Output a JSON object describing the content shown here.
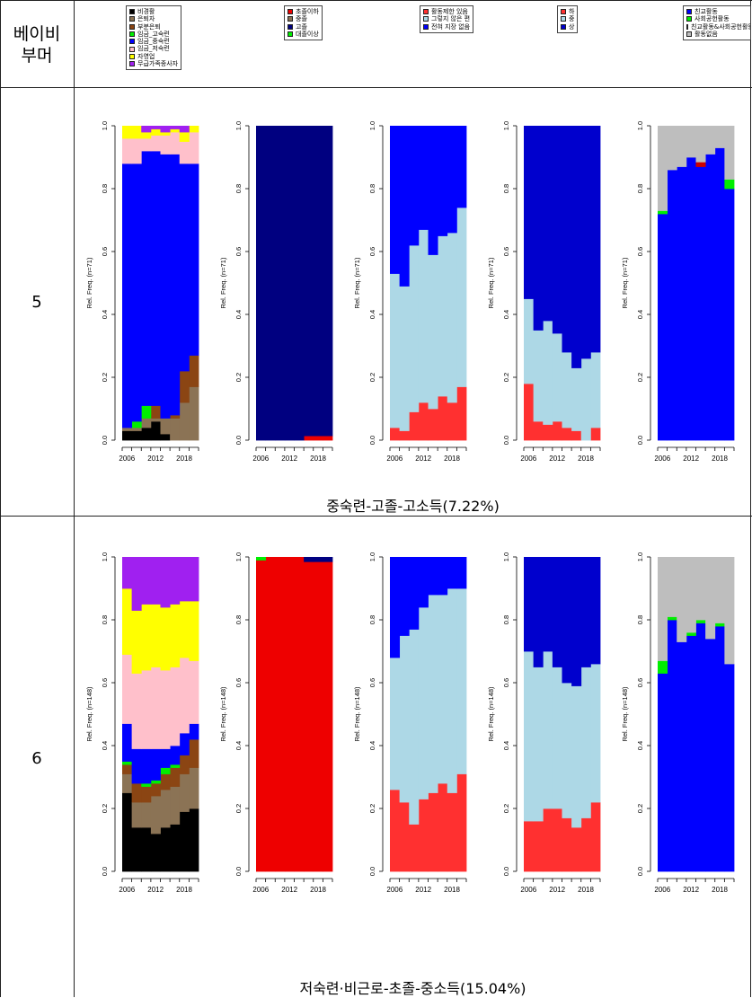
{
  "header": {
    "row_label_line1": "베이비",
    "row_label_line2": "부머",
    "legends": [
      {
        "items": [
          {
            "label": "비경활",
            "color": "#000000"
          },
          {
            "label": "은퇴자",
            "color": "#8b7355"
          },
          {
            "label": "부분은퇴",
            "color": "#8b4513"
          },
          {
            "label": "임금_고숙련",
            "color": "#00ee00"
          },
          {
            "label": "임금_중숙련",
            "color": "#0000ff"
          },
          {
            "label": "임금_저숙련",
            "color": "#ffc0cb"
          },
          {
            "label": "자영업",
            "color": "#ffff00"
          },
          {
            "label": "무급가족종사자",
            "color": "#a020f0"
          }
        ]
      },
      {
        "items": [
          {
            "label": "초졸이하",
            "color": "#ee0000"
          },
          {
            "label": "중졸",
            "color": "#8b7355"
          },
          {
            "label": "고졸",
            "color": "#000080"
          },
          {
            "label": "대졸이상",
            "color": "#00ee00"
          }
        ]
      },
      {
        "items": [
          {
            "label": "활동제한 있음",
            "color": "#ff3030"
          },
          {
            "label": "그렇지 않은 편",
            "color": "#add8e6"
          },
          {
            "label": "전혀 지장 없음",
            "color": "#0000ff"
          }
        ]
      },
      {
        "items": [
          {
            "label": "하",
            "color": "#ff3030"
          },
          {
            "label": "중",
            "color": "#add8e6"
          },
          {
            "label": "상",
            "color": "#0000cd"
          }
        ]
      },
      {
        "items": [
          {
            "label": "친교활동",
            "color": "#0000ff"
          },
          {
            "label": "사회공헌활동",
            "color": "#00ee00"
          },
          {
            "label": "친교활동&사회공헌활동",
            "color": "#cc0000"
          },
          {
            "label": "활동없음",
            "color": "#bebebe"
          }
        ]
      }
    ]
  },
  "rows": [
    {
      "label": "5",
      "caption": "중숙련-고졸-고소득(7.22%)",
      "ylabel": "Rel. Freq. (n=71)"
    },
    {
      "label": "6",
      "caption": "저숙련·비근로-초졸-중소득(15.04%)",
      "ylabel": "Rel. Freq. (n=148)"
    }
  ],
  "axis": {
    "y_ticks": [
      "0.0",
      "0.2",
      "0.4",
      "0.6",
      "0.8",
      "1.0"
    ],
    "x_ticks": [
      "2006",
      "2012",
      "2018"
    ]
  },
  "chart_data": [
    {
      "type": "area",
      "row": "5",
      "panel": "경제활동상태",
      "x": [
        2006,
        2008,
        2010,
        2012,
        2014,
        2016,
        2018,
        2020
      ],
      "ylabel": "Rel. Freq. (n=71)",
      "ylim": [
        0,
        1
      ],
      "series": [
        {
          "name": "비경활",
          "color": "#000000",
          "values": [
            0.03,
            0.03,
            0.04,
            0.06,
            0.02,
            0.0,
            0.0,
            0.0
          ]
        },
        {
          "name": "은퇴자",
          "color": "#8b7355",
          "values": [
            0.01,
            0.01,
            0.03,
            0.01,
            0.05,
            0.07,
            0.12,
            0.17
          ]
        },
        {
          "name": "부분은퇴",
          "color": "#8b4513",
          "values": [
            0.0,
            0.0,
            0.0,
            0.04,
            0.0,
            0.01,
            0.1,
            0.1
          ]
        },
        {
          "name": "임금_고숙련",
          "color": "#00ee00",
          "values": [
            0.0,
            0.02,
            0.04,
            0.0,
            0.0,
            0.0,
            0.0,
            0.0
          ]
        },
        {
          "name": "임금_중숙련",
          "color": "#0000ff",
          "values": [
            0.84,
            0.82,
            0.81,
            0.81,
            0.84,
            0.83,
            0.66,
            0.61
          ]
        },
        {
          "name": "임금_저숙련",
          "color": "#ffc0cb",
          "values": [
            0.08,
            0.08,
            0.04,
            0.05,
            0.06,
            0.07,
            0.07,
            0.1
          ]
        },
        {
          "name": "자영업",
          "color": "#ffff00",
          "values": [
            0.04,
            0.04,
            0.02,
            0.02,
            0.01,
            0.01,
            0.03,
            0.02
          ]
        },
        {
          "name": "무급가족종사자",
          "color": "#a020f0",
          "values": [
            0.0,
            0.0,
            0.02,
            0.01,
            0.02,
            0.01,
            0.02,
            0.0
          ]
        }
      ]
    },
    {
      "type": "area",
      "row": "5",
      "panel": "교육수준",
      "x": [
        2006,
        2008,
        2010,
        2012,
        2014,
        2016,
        2018,
        2020
      ],
      "ylabel": "Rel. Freq. (n=71)",
      "ylim": [
        0,
        1
      ],
      "series": [
        {
          "name": "초졸이하",
          "color": "#ee0000",
          "values": [
            0,
            0,
            0,
            0,
            0,
            0.014,
            0.014,
            0.014
          ]
        },
        {
          "name": "중졸",
          "color": "#8b7355",
          "values": [
            0,
            0,
            0,
            0,
            0,
            0,
            0,
            0
          ]
        },
        {
          "name": "고졸",
          "color": "#000080",
          "values": [
            1,
            1,
            1,
            1,
            1,
            0.986,
            0.986,
            0.986
          ]
        },
        {
          "name": "대졸이상",
          "color": "#00ee00",
          "values": [
            0,
            0,
            0,
            0,
            0,
            0,
            0,
            0
          ]
        }
      ]
    },
    {
      "type": "area",
      "row": "5",
      "panel": "건강",
      "x": [
        2006,
        2008,
        2010,
        2012,
        2014,
        2016,
        2018,
        2020
      ],
      "ylabel": "Rel. Freq. (n=71)",
      "ylim": [
        0,
        1
      ],
      "series": [
        {
          "name": "활동제한 있음",
          "color": "#ff3030",
          "values": [
            0.04,
            0.03,
            0.09,
            0.12,
            0.1,
            0.14,
            0.12,
            0.17
          ]
        },
        {
          "name": "그렇지 않은 편",
          "color": "#add8e6",
          "values": [
            0.49,
            0.46,
            0.53,
            0.55,
            0.49,
            0.51,
            0.54,
            0.57
          ]
        },
        {
          "name": "전혀 지장 없음",
          "color": "#0000ff",
          "values": [
            0.47,
            0.51,
            0.38,
            0.33,
            0.41,
            0.35,
            0.34,
            0.26
          ]
        }
      ]
    },
    {
      "type": "area",
      "row": "5",
      "panel": "소득",
      "x": [
        2006,
        2008,
        2010,
        2012,
        2014,
        2016,
        2018,
        2020
      ],
      "ylabel": "Rel. Freq. (n=71)",
      "ylim": [
        0,
        1
      ],
      "series": [
        {
          "name": "하",
          "color": "#ff3030",
          "values": [
            0.18,
            0.06,
            0.05,
            0.06,
            0.04,
            0.03,
            0.0,
            0.04
          ]
        },
        {
          "name": "중",
          "color": "#add8e6",
          "values": [
            0.27,
            0.29,
            0.33,
            0.28,
            0.24,
            0.2,
            0.26,
            0.24
          ]
        },
        {
          "name": "상",
          "color": "#0000cd",
          "values": [
            0.55,
            0.65,
            0.62,
            0.66,
            0.72,
            0.77,
            0.74,
            0.72
          ]
        }
      ]
    },
    {
      "type": "area",
      "row": "5",
      "panel": "사회활동",
      "x": [
        2006,
        2008,
        2010,
        2012,
        2014,
        2016,
        2018,
        2020
      ],
      "ylabel": "Rel. Freq. (n=71)",
      "ylim": [
        0,
        1
      ],
      "series": [
        {
          "name": "친교활동",
          "color": "#0000ff",
          "values": [
            0.72,
            0.86,
            0.87,
            0.9,
            0.87,
            0.91,
            0.93,
            0.8
          ]
        },
        {
          "name": "사회공헌활동",
          "color": "#00ee00",
          "values": [
            0.01,
            0.0,
            0.0,
            0.0,
            0.0,
            0.0,
            0.0,
            0.03
          ]
        },
        {
          "name": "친교활동&사회공헌활동",
          "color": "#cc0000",
          "values": [
            0,
            0,
            0,
            0,
            0.015,
            0,
            0,
            0
          ]
        },
        {
          "name": "활동없음",
          "color": "#bebebe",
          "values": [
            0.27,
            0.14,
            0.13,
            0.1,
            0.115,
            0.09,
            0.07,
            0.17
          ]
        }
      ]
    },
    {
      "type": "area",
      "row": "6",
      "panel": "경제활동상태",
      "x": [
        2006,
        2008,
        2010,
        2012,
        2014,
        2016,
        2018,
        2020
      ],
      "ylabel": "Rel. Freq. (n=148)",
      "ylim": [
        0,
        1
      ],
      "series": [
        {
          "name": "비경활",
          "color": "#000000",
          "values": [
            0.25,
            0.14,
            0.14,
            0.12,
            0.14,
            0.15,
            0.19,
            0.2
          ]
        },
        {
          "name": "은퇴자",
          "color": "#8b7355",
          "values": [
            0.06,
            0.08,
            0.08,
            0.12,
            0.12,
            0.12,
            0.12,
            0.13
          ]
        },
        {
          "name": "부분은퇴",
          "color": "#8b4513",
          "values": [
            0.03,
            0.06,
            0.05,
            0.04,
            0.05,
            0.06,
            0.06,
            0.09
          ]
        },
        {
          "name": "임금_고숙련",
          "color": "#00ee00",
          "values": [
            0.01,
            0.0,
            0.01,
            0.01,
            0.02,
            0.01,
            0.0,
            0.0
          ]
        },
        {
          "name": "임금_중숙련",
          "color": "#0000ff",
          "values": [
            0.12,
            0.11,
            0.11,
            0.1,
            0.06,
            0.06,
            0.07,
            0.05
          ]
        },
        {
          "name": "임금_저숙련",
          "color": "#ffc0cb",
          "values": [
            0.22,
            0.24,
            0.25,
            0.26,
            0.25,
            0.25,
            0.24,
            0.2
          ]
        },
        {
          "name": "자영업",
          "color": "#ffff00",
          "values": [
            0.21,
            0.2,
            0.21,
            0.2,
            0.2,
            0.2,
            0.18,
            0.19
          ]
        },
        {
          "name": "무급가족종사자",
          "color": "#a020f0",
          "values": [
            0.1,
            0.17,
            0.15,
            0.15,
            0.16,
            0.15,
            0.14,
            0.14
          ]
        }
      ]
    },
    {
      "type": "area",
      "row": "6",
      "panel": "교육수준",
      "x": [
        2006,
        2008,
        2010,
        2012,
        2014,
        2016,
        2018,
        2020
      ],
      "ylabel": "Rel. Freq. (n=148)",
      "ylim": [
        0,
        1
      ],
      "series": [
        {
          "name": "초졸이하",
          "color": "#ee0000",
          "values": [
            0.99,
            1,
            1,
            1,
            1,
            0.985,
            0.985,
            0.985
          ]
        },
        {
          "name": "중졸",
          "color": "#8b7355",
          "values": [
            0,
            0,
            0,
            0,
            0,
            0,
            0,
            0
          ]
        },
        {
          "name": "고졸",
          "color": "#000080",
          "values": [
            0,
            0,
            0,
            0,
            0,
            0.015,
            0.015,
            0.015
          ]
        },
        {
          "name": "대졸이상",
          "color": "#00ee00",
          "values": [
            0.01,
            0,
            0,
            0,
            0,
            0,
            0,
            0
          ]
        }
      ]
    },
    {
      "type": "area",
      "row": "6",
      "panel": "건강",
      "x": [
        2006,
        2008,
        2010,
        2012,
        2014,
        2016,
        2018,
        2020
      ],
      "ylabel": "Rel. Freq. (n=148)",
      "ylim": [
        0,
        1
      ],
      "series": [
        {
          "name": "활동제한 있음",
          "color": "#ff3030",
          "values": [
            0.26,
            0.22,
            0.15,
            0.23,
            0.25,
            0.28,
            0.25,
            0.31
          ]
        },
        {
          "name": "그렇지 않은 편",
          "color": "#add8e6",
          "values": [
            0.42,
            0.53,
            0.62,
            0.61,
            0.63,
            0.6,
            0.65,
            0.59
          ]
        },
        {
          "name": "전혀 지장 없음",
          "color": "#0000ff",
          "values": [
            0.32,
            0.25,
            0.23,
            0.16,
            0.12,
            0.12,
            0.1,
            0.1
          ]
        }
      ]
    },
    {
      "type": "area",
      "row": "6",
      "panel": "소득",
      "x": [
        2006,
        2008,
        2010,
        2012,
        2014,
        2016,
        2018,
        2020
      ],
      "ylabel": "Rel. Freq. (n=148)",
      "ylim": [
        0,
        1
      ],
      "series": [
        {
          "name": "하",
          "color": "#ff3030",
          "values": [
            0.16,
            0.16,
            0.2,
            0.2,
            0.17,
            0.14,
            0.17,
            0.22
          ]
        },
        {
          "name": "중",
          "color": "#add8e6",
          "values": [
            0.54,
            0.49,
            0.5,
            0.45,
            0.43,
            0.45,
            0.48,
            0.44
          ]
        },
        {
          "name": "상",
          "color": "#0000cd",
          "values": [
            0.3,
            0.35,
            0.3,
            0.35,
            0.4,
            0.41,
            0.35,
            0.34
          ]
        }
      ]
    },
    {
      "type": "area",
      "row": "6",
      "panel": "사회활동",
      "x": [
        2006,
        2008,
        2010,
        2012,
        2014,
        2016,
        2018,
        2020
      ],
      "ylabel": "Rel. Freq. (n=148)",
      "ylim": [
        0,
        1
      ],
      "series": [
        {
          "name": "친교활동",
          "color": "#0000ff",
          "values": [
            0.63,
            0.8,
            0.73,
            0.75,
            0.79,
            0.74,
            0.78,
            0.66
          ]
        },
        {
          "name": "사회공헌활동",
          "color": "#00ee00",
          "values": [
            0.04,
            0.01,
            0.0,
            0.01,
            0.01,
            0.0,
            0.01,
            0.0
          ]
        },
        {
          "name": "친교활동&사회공헌활동",
          "color": "#cc0000",
          "values": [
            0,
            0,
            0,
            0,
            0,
            0,
            0,
            0
          ]
        },
        {
          "name": "활동없음",
          "color": "#bebebe",
          "values": [
            0.33,
            0.19,
            0.27,
            0.24,
            0.2,
            0.26,
            0.21,
            0.34
          ]
        }
      ]
    }
  ]
}
